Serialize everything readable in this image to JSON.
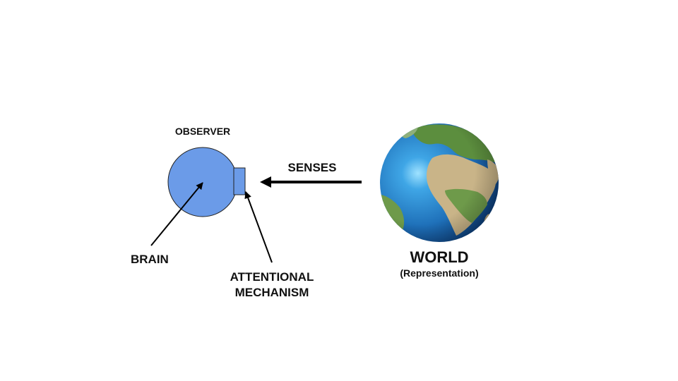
{
  "observer": {
    "title": "OBSERVER",
    "brain_label": "BRAIN",
    "attention_label_line1": "ATTENTIONAL",
    "attention_label_line2": "MECHANISM",
    "brain_color": "#6B9BE8",
    "outline_color": "#222222"
  },
  "senses": {
    "label": "SENSES",
    "arrow_color": "#000000"
  },
  "world": {
    "title": "WORLD",
    "subtitle": "(Representation)",
    "ocean_color": "#1E6FB8",
    "land_color": "#C8B48A",
    "vegetation_color": "#4E8A3A"
  }
}
